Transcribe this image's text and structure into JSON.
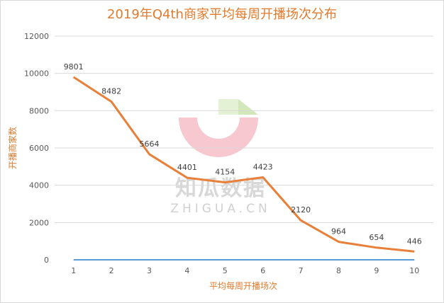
{
  "chart_data": {
    "type": "line",
    "title": "2019年Q4th商家平均每周开播场次分布",
    "xlabel": "平均每周开播场次",
    "ylabel": "开播商家数",
    "categories": [
      "1",
      "2",
      "3",
      "4",
      "5",
      "6",
      "7",
      "8",
      "9",
      "10"
    ],
    "ylim": [
      0,
      12000
    ],
    "yticks": [
      0,
      2000,
      4000,
      6000,
      8000,
      10000,
      12000
    ],
    "grid": true,
    "series": [
      {
        "values": [
          9801,
          8482,
          5664,
          4401,
          4154,
          4423,
          2120,
          964,
          654,
          446
        ],
        "color": "#e8803a",
        "data_labels": true
      },
      {
        "values": [
          0,
          0,
          0,
          0,
          0,
          0,
          0,
          0,
          0,
          0
        ],
        "color": "#5b9bd5",
        "data_labels": false
      }
    ]
  },
  "watermark": {
    "text": "知瓜数据",
    "subtext": "ZHIGUA.CN"
  },
  "colors": {
    "accent": "#e07b2e",
    "grid": "#d9d9d9",
    "line": "#e8803a",
    "baseline": "#5b9bd5"
  }
}
